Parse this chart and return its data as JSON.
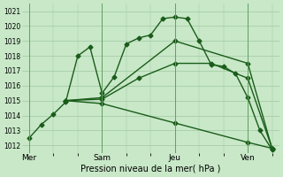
{
  "background_color": "#c8e8c8",
  "grid_color": "#a0c8a0",
  "line_color": "#1a5c1a",
  "xlabel": "Pression niveau de la mer( hPa )",
  "ylim": [
    1011.5,
    1021.5
  ],
  "yticks": [
    1012,
    1013,
    1014,
    1015,
    1016,
    1017,
    1018,
    1019,
    1020,
    1021
  ],
  "xtick_labels": [
    "Mer",
    "Sam",
    "Jeu",
    "Ven"
  ],
  "xtick_positions": [
    0,
    30,
    60,
    90
  ],
  "xlim": [
    -3,
    103
  ],
  "vline_positions": [
    0,
    30,
    60,
    90
  ],
  "line1_x": [
    0,
    5,
    10,
    15,
    20,
    25,
    30,
    35,
    40,
    45,
    50,
    55,
    60,
    65,
    70,
    75,
    80,
    85,
    90,
    95,
    100
  ],
  "line1_y": [
    1012.5,
    1013.4,
    1014.1,
    1014.9,
    1018.0,
    1018.6,
    1015.5,
    1016.6,
    1018.8,
    1019.2,
    1019.4,
    1020.5,
    1020.6,
    1020.5,
    1019.0,
    1017.4,
    1017.3,
    1016.8,
    1015.2,
    1013.0,
    1011.7
  ],
  "line2_x": [
    15,
    30,
    45,
    60,
    75,
    90,
    100
  ],
  "line2_y": [
    1015.0,
    1015.1,
    1016.5,
    1017.5,
    1017.5,
    1016.5,
    1011.8
  ],
  "line3_x": [
    15,
    30,
    60,
    90,
    100
  ],
  "line3_y": [
    1015.0,
    1015.2,
    1019.0,
    1017.5,
    1011.8
  ],
  "line4_x": [
    15,
    30,
    60,
    90,
    100
  ],
  "line4_y": [
    1015.0,
    1014.8,
    1013.5,
    1012.2,
    1011.8
  ]
}
